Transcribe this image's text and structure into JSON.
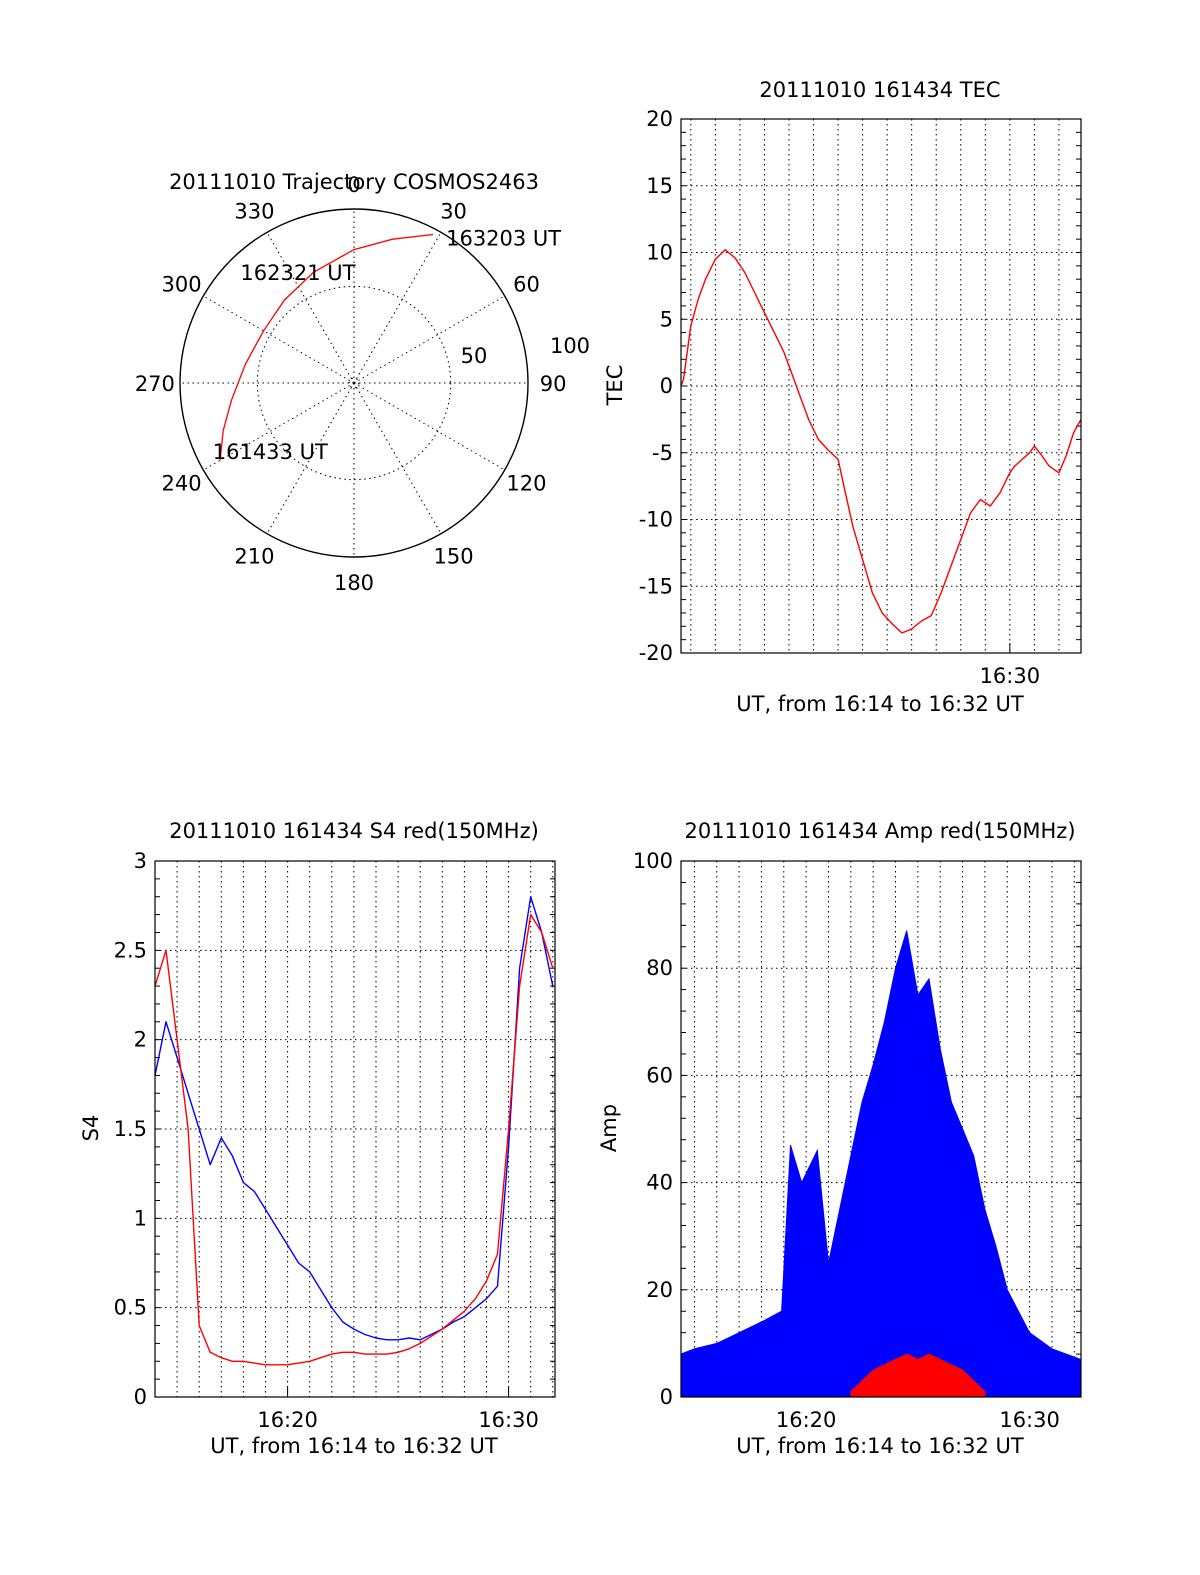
{
  "chart_data": [
    {
      "id": "trajectory",
      "type": "scatter",
      "title": "20111010 Trajectory COSMOS2463",
      "azimuth_labels": [
        "0",
        "30",
        "60",
        "90",
        "120",
        "150",
        "180",
        "210",
        "240",
        "270",
        "300",
        "330"
      ],
      "elevation_labels": [
        "50",
        "100"
      ],
      "color": "#ff0000",
      "points": [
        {
          "az": 240,
          "r": 80
        },
        {
          "az": 250,
          "r": 72
        },
        {
          "az": 262,
          "r": 64
        },
        {
          "az": 280,
          "r": 57
        },
        {
          "az": 300,
          "r": 54
        },
        {
          "az": 320,
          "r": 56
        },
        {
          "az": 340,
          "r": 61
        },
        {
          "az": 0,
          "r": 69
        },
        {
          "az": 15,
          "r": 77
        },
        {
          "az": 28,
          "r": 87
        }
      ],
      "annotations": [
        {
          "text": "163203 UT",
          "az": 30,
          "r": 87
        },
        {
          "text": "162321 UT",
          "az": 330,
          "r": 58
        },
        {
          "text": "161433 UT",
          "az": 243,
          "r": 82
        }
      ]
    },
    {
      "id": "tec",
      "type": "line",
      "title": "20111010 161434 TEC",
      "xlabel": "UT, from 16:14 to 16:32 UT",
      "ylabel": "TEC",
      "xlim": [
        16.6,
        32.9
      ],
      "ylim": [
        -20,
        20
      ],
      "yticks": [
        -20,
        -15,
        -10,
        -5,
        0,
        5,
        10,
        15,
        20
      ],
      "xticks": [
        {
          "v": 30,
          "label": "16:30"
        }
      ],
      "color": "#ff0000",
      "x": [
        16.6,
        16.7,
        17.0,
        17.3,
        17.6,
        18.0,
        18.4,
        18.8,
        19.2,
        19.6,
        20.0,
        20.4,
        20.8,
        21.2,
        21.5,
        21.8,
        22.2,
        22.6,
        23.0,
        23.3,
        23.6,
        24.0,
        24.4,
        24.8,
        25.2,
        25.6,
        26.0,
        26.4,
        26.8,
        27.2,
        27.6,
        28.0,
        28.4,
        28.8,
        29.2,
        29.6,
        30.0,
        30.2,
        30.5,
        30.8,
        31.0,
        31.3,
        31.6,
        32.0,
        32.3,
        32.6,
        32.9
      ],
      "y": [
        0,
        0.5,
        4.5,
        6.5,
        8,
        9.5,
        10.2,
        9.6,
        8.5,
        7,
        5.5,
        4,
        2.5,
        0.5,
        -1,
        -2.5,
        -4,
        -4.8,
        -5.5,
        -8,
        -10.5,
        -13,
        -15.5,
        -17,
        -17.8,
        -18.5,
        -18.2,
        -17.6,
        -17.2,
        -15.5,
        -13.5,
        -11.5,
        -9.5,
        -8.5,
        -9,
        -8,
        -6.5,
        -6,
        -5.5,
        -5,
        -4.5,
        -5.2,
        -6,
        -6.5,
        -5.2,
        -3.5,
        -2.5
      ]
    },
    {
      "id": "s4",
      "type": "line",
      "title": "20111010 161434 S4 red(150MHz)",
      "xlabel": "UT, from 16:14 to 16:32 UT",
      "ylabel": "S4",
      "xlim": [
        14.0,
        32.1
      ],
      "ylim": [
        0,
        3
      ],
      "yticks": [
        0,
        0.5,
        1,
        1.5,
        2,
        2.5,
        3
      ],
      "ytick_labels": [
        "0",
        "0.5",
        "1",
        "1.5",
        "2",
        "2.5",
        "3"
      ],
      "xticks": [
        {
          "v": 20,
          "label": "16:20"
        },
        {
          "v": 30,
          "label": "16:30"
        }
      ],
      "series": [
        {
          "color": "#0000ff",
          "x": [
            14.0,
            14.5,
            15.0,
            15.5,
            16.0,
            16.5,
            17.0,
            17.5,
            18.0,
            18.5,
            19.0,
            19.5,
            20.0,
            20.5,
            21.0,
            21.5,
            22.0,
            22.5,
            23.0,
            23.5,
            24.0,
            24.5,
            25.0,
            25.5,
            26.0,
            26.5,
            27.0,
            27.5,
            28.0,
            28.5,
            29.0,
            29.5,
            30.0,
            30.5,
            31.0,
            31.5,
            32.0
          ],
          "y": [
            1.8,
            2.1,
            1.9,
            1.7,
            1.5,
            1.3,
            1.45,
            1.35,
            1.2,
            1.15,
            1.05,
            0.95,
            0.85,
            0.75,
            0.7,
            0.6,
            0.5,
            0.42,
            0.38,
            0.35,
            0.33,
            0.32,
            0.32,
            0.33,
            0.32,
            0.35,
            0.38,
            0.42,
            0.45,
            0.5,
            0.55,
            0.62,
            1.4,
            2.4,
            2.8,
            2.6,
            2.3
          ]
        },
        {
          "color": "#ff0000",
          "x": [
            14.0,
            14.5,
            15.0,
            15.5,
            16.0,
            16.5,
            17.0,
            17.5,
            18.0,
            18.5,
            19.0,
            19.5,
            20.0,
            20.5,
            21.0,
            21.5,
            22.0,
            22.5,
            23.0,
            23.5,
            24.0,
            24.5,
            25.0,
            25.5,
            26.0,
            26.5,
            27.0,
            27.5,
            28.0,
            28.5,
            29.0,
            29.5,
            30.0,
            30.5,
            31.0,
            31.5,
            32.0
          ],
          "y": [
            2.3,
            2.5,
            2.0,
            1.5,
            0.4,
            0.25,
            0.22,
            0.2,
            0.2,
            0.19,
            0.18,
            0.18,
            0.18,
            0.19,
            0.2,
            0.22,
            0.24,
            0.25,
            0.25,
            0.24,
            0.24,
            0.24,
            0.25,
            0.27,
            0.3,
            0.34,
            0.38,
            0.43,
            0.48,
            0.55,
            0.65,
            0.8,
            1.5,
            2.3,
            2.7,
            2.6,
            2.4
          ]
        }
      ]
    },
    {
      "id": "amp",
      "type": "area",
      "title": "20111010 161434 Amp red(150MHz)",
      "xlabel": "UT, from 16:14 to 16:32 UT",
      "ylabel": "Amp",
      "xlim": [
        14.4,
        32.3
      ],
      "ylim": [
        0,
        100
      ],
      "yticks": [
        0,
        20,
        40,
        60,
        80,
        100
      ],
      "xticks": [
        {
          "v": 20,
          "label": "16:20"
        },
        {
          "v": 30,
          "label": "16:30"
        }
      ],
      "series": [
        {
          "color": "#0000ff",
          "x": [
            14.4,
            15.0,
            16.0,
            17.0,
            18.0,
            18.9,
            19.3,
            19.8,
            20.5,
            21.0,
            21.5,
            22.0,
            22.5,
            23.0,
            23.5,
            24.0,
            24.5,
            25.0,
            25.5,
            26.0,
            26.5,
            27.0,
            27.5,
            28.0,
            28.5,
            29.0,
            30.0,
            31.0,
            32.3
          ],
          "y": [
            8,
            9,
            10,
            12,
            14,
            16,
            47,
            40,
            46,
            25,
            35,
            45,
            55,
            62,
            70,
            80,
            87,
            75,
            78,
            65,
            55,
            50,
            45,
            35,
            28,
            20,
            12,
            9,
            7
          ]
        },
        {
          "color": "#ff0000",
          "x": [
            22.0,
            22.5,
            23.0,
            23.5,
            24.0,
            24.5,
            25.0,
            25.5,
            26.0,
            26.5,
            27.0,
            27.5,
            28.0
          ],
          "y": [
            1,
            3,
            5,
            6,
            7,
            8,
            7,
            8,
            7,
            6,
            5,
            3,
            1
          ]
        }
      ]
    }
  ]
}
